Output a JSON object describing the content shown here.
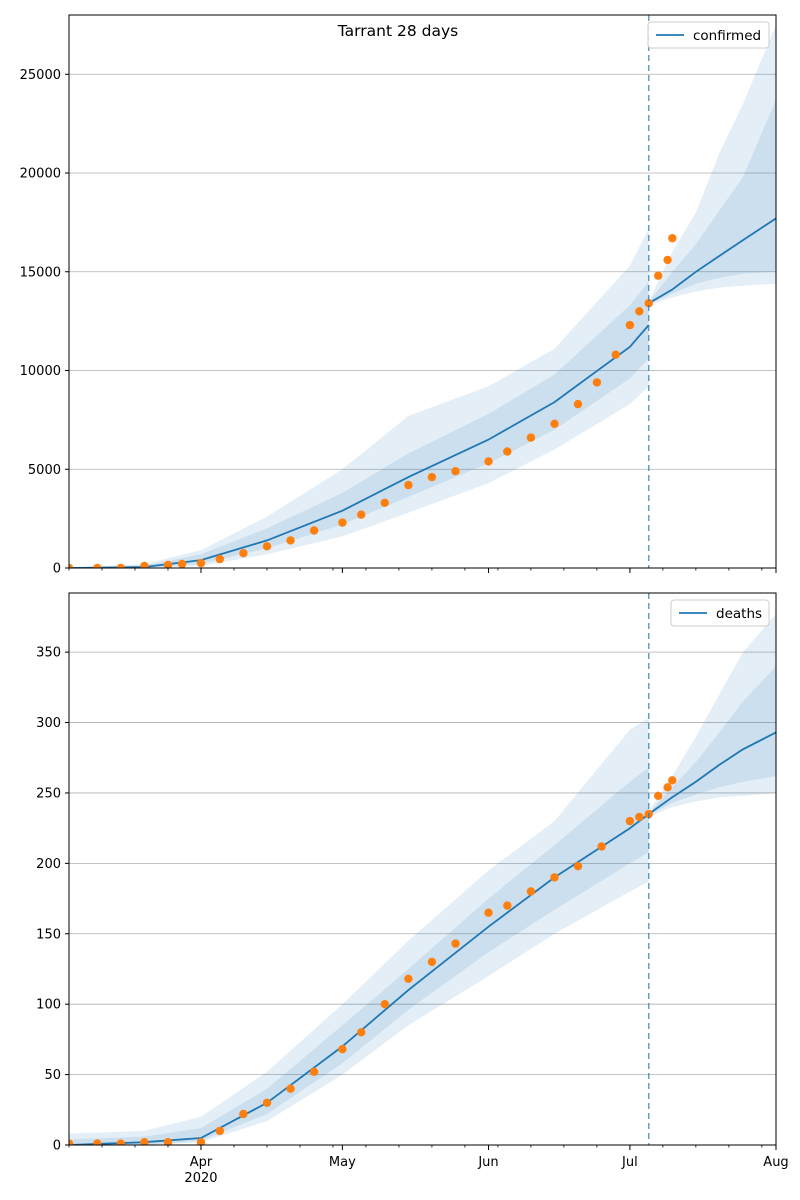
{
  "figure": {
    "title": "Tarrant 28 days"
  },
  "x_axis": {
    "major_ticks": [
      {
        "date": "2020-04-01",
        "label": "Apr"
      },
      {
        "date": "2020-05-01",
        "label": "May"
      },
      {
        "date": "2020-06-01",
        "label": "Jun"
      },
      {
        "date": "2020-07-01",
        "label": "Jul"
      },
      {
        "date": "2020-08-01",
        "label": "Aug"
      }
    ],
    "year_label": "2020",
    "xlim": [
      "2020-03-04",
      "2020-08-01"
    ]
  },
  "colors": {
    "model": "#1f77b4",
    "observed": "#ff7f0e",
    "band": "#1f77b4",
    "grid": "#b0b0b0"
  },
  "chart_data": [
    {
      "type": "line",
      "legend": "confirmed",
      "legend_position": "top-right",
      "ylim": [
        0,
        28000
      ],
      "yticks": [
        0,
        5000,
        10000,
        15000,
        20000,
        25000
      ],
      "grid": "horizontal",
      "forecast_start": "2020-07-05",
      "model_fit": {
        "x": [
          "2020-03-04",
          "2020-03-20",
          "2020-04-01",
          "2020-04-15",
          "2020-05-01",
          "2020-05-15",
          "2020-06-01",
          "2020-06-15",
          "2020-07-01",
          "2020-07-05"
        ],
        "y": [
          0,
          50,
          400,
          1400,
          2900,
          4600,
          6500,
          8400,
          11200,
          12300
        ]
      },
      "forecast": {
        "x": [
          "2020-07-05",
          "2020-07-10",
          "2020-07-15",
          "2020-07-20",
          "2020-07-25",
          "2020-08-01"
        ],
        "y": [
          13400,
          14100,
          15000,
          15800,
          16600,
          17700
        ]
      },
      "bands": [
        {
          "x": [
            "2020-03-04",
            "2020-03-20",
            "2020-04-01",
            "2020-04-15",
            "2020-05-01",
            "2020-05-15",
            "2020-06-01",
            "2020-06-15",
            "2020-07-01",
            "2020-07-05"
          ],
          "low": [
            0,
            0,
            100,
            700,
            1600,
            2800,
            4300,
            6000,
            8300,
            9200
          ],
          "high": [
            0,
            200,
            900,
            2600,
            5000,
            7700,
            9200,
            11100,
            15300,
            17200
          ]
        },
        {
          "x": [
            "2020-03-04",
            "2020-03-20",
            "2020-04-01",
            "2020-04-15",
            "2020-05-01",
            "2020-05-15",
            "2020-06-01",
            "2020-06-15",
            "2020-07-01",
            "2020-07-05"
          ],
          "low": [
            0,
            0,
            200,
            1000,
            2200,
            3600,
            5300,
            7000,
            9600,
            10600
          ],
          "high": [
            0,
            120,
            700,
            2000,
            3800,
            5800,
            7800,
            9800,
            13300,
            14500
          ]
        },
        {
          "x": [
            "2020-07-05",
            "2020-07-10",
            "2020-07-15",
            "2020-07-20",
            "2020-07-25",
            "2020-08-01"
          ],
          "low": [
            13300,
            13700,
            14000,
            14200,
            14300,
            14400
          ],
          "high": [
            13500,
            16000,
            18000,
            21000,
            23500,
            27500
          ]
        },
        {
          "x": [
            "2020-07-05",
            "2020-07-10",
            "2020-07-15",
            "2020-07-20",
            "2020-07-25",
            "2020-08-01"
          ],
          "low": [
            13350,
            13900,
            14400,
            14700,
            14900,
            15000
          ],
          "high": [
            13450,
            15000,
            16400,
            18100,
            19800,
            23700
          ]
        }
      ],
      "observed": {
        "x": [
          "2020-03-04",
          "2020-03-10",
          "2020-03-15",
          "2020-03-20",
          "2020-03-25",
          "2020-03-28",
          "2020-04-01",
          "2020-04-05",
          "2020-04-10",
          "2020-04-15",
          "2020-04-20",
          "2020-04-25",
          "2020-05-01",
          "2020-05-05",
          "2020-05-10",
          "2020-05-15",
          "2020-05-20",
          "2020-05-25",
          "2020-06-01",
          "2020-06-05",
          "2020-06-10",
          "2020-06-15",
          "2020-06-20",
          "2020-06-24",
          "2020-06-28",
          "2020-07-01",
          "2020-07-03",
          "2020-07-05",
          "2020-07-07",
          "2020-07-09",
          "2020-07-10"
        ],
        "y": [
          0,
          0,
          0,
          100,
          150,
          200,
          250,
          450,
          750,
          1100,
          1400,
          1900,
          2300,
          2700,
          3300,
          4200,
          4600,
          4900,
          5400,
          5900,
          6600,
          7300,
          8300,
          9400,
          10800,
          12300,
          13000,
          13400,
          14800,
          15600,
          16700
        ]
      }
    },
    {
      "type": "line",
      "legend": "deaths",
      "legend_position": "top-right",
      "ylim": [
        0,
        392
      ],
      "yticks": [
        0,
        50,
        100,
        150,
        200,
        250,
        300,
        350
      ],
      "grid": "horizontal",
      "forecast_start": "2020-07-05",
      "model_fit": {
        "x": [
          "2020-03-04",
          "2020-03-20",
          "2020-04-01",
          "2020-04-15",
          "2020-05-01",
          "2020-05-15",
          "2020-06-01",
          "2020-06-15",
          "2020-07-01",
          "2020-07-05"
        ],
        "y": [
          0,
          2,
          5,
          30,
          70,
          110,
          155,
          190,
          225,
          235
        ]
      },
      "forecast": {
        "x": [
          "2020-07-05",
          "2020-07-10",
          "2020-07-15",
          "2020-07-20",
          "2020-07-25",
          "2020-08-01"
        ],
        "y": [
          235,
          247,
          258,
          270,
          281,
          293
        ]
      },
      "bands": [
        {
          "x": [
            "2020-03-04",
            "2020-03-20",
            "2020-04-01",
            "2020-04-15",
            "2020-05-01",
            "2020-05-15",
            "2020-06-01",
            "2020-06-15",
            "2020-07-01",
            "2020-07-05"
          ],
          "low": [
            0,
            0,
            2,
            17,
            50,
            85,
            120,
            150,
            180,
            187
          ],
          "high": [
            8,
            10,
            20,
            52,
            100,
            145,
            195,
            230,
            295,
            303
          ]
        },
        {
          "x": [
            "2020-03-04",
            "2020-03-20",
            "2020-04-01",
            "2020-04-15",
            "2020-05-01",
            "2020-05-15",
            "2020-06-01",
            "2020-06-15",
            "2020-07-01",
            "2020-07-05"
          ],
          "low": [
            0,
            0,
            3,
            22,
            58,
            96,
            137,
            167,
            200,
            208
          ],
          "high": [
            4,
            6,
            12,
            40,
            85,
            125,
            175,
            213,
            258,
            268
          ]
        },
        {
          "x": [
            "2020-07-05",
            "2020-07-10",
            "2020-07-15",
            "2020-07-20",
            "2020-07-25",
            "2020-08-01"
          ],
          "low": [
            233,
            240,
            244,
            247,
            248,
            250
          ],
          "high": [
            237,
            262,
            290,
            320,
            350,
            377
          ]
        },
        {
          "x": [
            "2020-07-05",
            "2020-07-10",
            "2020-07-15",
            "2020-07-20",
            "2020-07-25",
            "2020-08-01"
          ],
          "low": [
            234,
            243,
            249,
            254,
            258,
            262
          ],
          "high": [
            236,
            254,
            272,
            293,
            315,
            340
          ]
        }
      ],
      "observed": {
        "x": [
          "2020-03-04",
          "2020-03-10",
          "2020-03-15",
          "2020-03-20",
          "2020-03-25",
          "2020-04-01",
          "2020-04-05",
          "2020-04-10",
          "2020-04-15",
          "2020-04-20",
          "2020-04-25",
          "2020-05-01",
          "2020-05-05",
          "2020-05-10",
          "2020-05-15",
          "2020-05-20",
          "2020-05-25",
          "2020-06-01",
          "2020-06-05",
          "2020-06-10",
          "2020-06-15",
          "2020-06-20",
          "2020-06-25",
          "2020-07-01",
          "2020-07-03",
          "2020-07-05",
          "2020-07-07",
          "2020-07-09",
          "2020-07-10"
        ],
        "y": [
          1,
          1,
          1,
          2,
          2,
          2,
          10,
          22,
          30,
          40,
          52,
          68,
          80,
          100,
          118,
          130,
          143,
          165,
          170,
          180,
          190,
          198,
          212,
          230,
          233,
          235,
          248,
          254,
          259
        ]
      }
    }
  ]
}
